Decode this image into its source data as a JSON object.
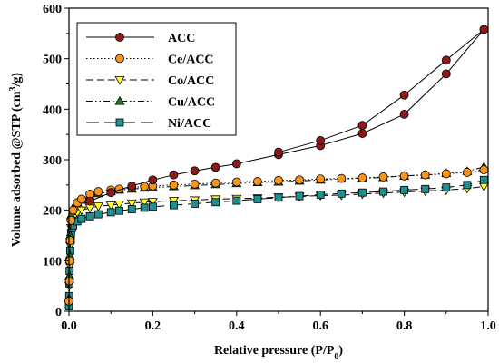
{
  "chart_data": {
    "type": "line",
    "xlabel": "Relative pressure (P/P",
    "xlabel_sub": "0",
    "xlabel_close": ")",
    "ylabel": "Volume adsorbed @STP (cm",
    "ylabel_sup": "3",
    "ylabel_rest": "/g)",
    "xlim": [
      0,
      1.0
    ],
    "ylim": [
      0,
      600
    ],
    "xticks": [
      "0.0",
      "0.2",
      "0.4",
      "0.6",
      "0.8",
      "1.0"
    ],
    "yticks": [
      "0",
      "100",
      "200",
      "300",
      "400",
      "500",
      "600"
    ],
    "grid": false,
    "legend_position": "top-left",
    "series": [
      {
        "name": "ACC",
        "color": "#8b1a1a",
        "marker": "circle",
        "dash": "solid",
        "adsorption": [
          [
            0.05,
            218
          ],
          [
            0.1,
            235
          ],
          [
            0.15,
            248
          ],
          [
            0.2,
            260
          ],
          [
            0.25,
            270
          ],
          [
            0.3,
            278
          ],
          [
            0.35,
            285
          ],
          [
            0.4,
            292
          ],
          [
            0.5,
            310
          ],
          [
            0.6,
            328
          ],
          [
            0.7,
            352
          ],
          [
            0.8,
            390
          ],
          [
            0.9,
            470
          ],
          [
            0.99,
            558
          ]
        ],
        "desorption": [
          [
            0.99,
            558
          ],
          [
            0.9,
            497
          ],
          [
            0.8,
            428
          ],
          [
            0.7,
            368
          ],
          [
            0.6,
            338
          ],
          [
            0.5,
            315
          ]
        ]
      },
      {
        "name": "Ce/ACC",
        "color": "#f7941d",
        "marker": "circle",
        "dash": "dotted",
        "adsorption": [
          [
            0.0,
            20
          ],
          [
            0.001,
            60
          ],
          [
            0.002,
            100
          ],
          [
            0.003,
            140
          ],
          [
            0.005,
            180
          ],
          [
            0.01,
            200
          ],
          [
            0.02,
            215
          ],
          [
            0.03,
            222
          ],
          [
            0.05,
            232
          ],
          [
            0.07,
            237
          ],
          [
            0.1,
            240
          ],
          [
            0.12,
            242
          ],
          [
            0.15,
            245
          ],
          [
            0.18,
            247
          ],
          [
            0.2,
            248
          ],
          [
            0.25,
            250
          ],
          [
            0.3,
            252
          ],
          [
            0.35,
            254
          ],
          [
            0.4,
            256
          ],
          [
            0.45,
            257
          ],
          [
            0.5,
            259
          ],
          [
            0.55,
            260
          ],
          [
            0.6,
            262
          ],
          [
            0.65,
            263
          ],
          [
            0.7,
            264
          ],
          [
            0.75,
            266
          ],
          [
            0.8,
            268
          ],
          [
            0.85,
            270
          ],
          [
            0.9,
            272
          ],
          [
            0.95,
            275
          ],
          [
            0.99,
            280
          ]
        ],
        "desorption": []
      },
      {
        "name": "Co/ACC",
        "color": "#ffff33",
        "marker": "triangle-down",
        "dash": "dashed",
        "adsorption": [
          [
            0.0,
            15
          ],
          [
            0.001,
            50
          ],
          [
            0.002,
            90
          ],
          [
            0.003,
            130
          ],
          [
            0.005,
            165
          ],
          [
            0.01,
            185
          ],
          [
            0.02,
            195
          ],
          [
            0.03,
            200
          ],
          [
            0.05,
            205
          ],
          [
            0.07,
            208
          ],
          [
            0.1,
            210
          ],
          [
            0.12,
            212
          ],
          [
            0.15,
            214
          ],
          [
            0.18,
            216
          ],
          [
            0.2,
            217
          ],
          [
            0.25,
            219
          ],
          [
            0.3,
            220
          ],
          [
            0.35,
            222
          ],
          [
            0.4,
            223
          ],
          [
            0.45,
            224
          ],
          [
            0.5,
            226
          ],
          [
            0.55,
            227
          ],
          [
            0.6,
            229
          ],
          [
            0.65,
            230
          ],
          [
            0.7,
            232
          ],
          [
            0.75,
            234
          ],
          [
            0.8,
            236
          ],
          [
            0.85,
            238
          ],
          [
            0.9,
            240
          ],
          [
            0.95,
            243
          ],
          [
            0.99,
            247
          ]
        ],
        "desorption": []
      },
      {
        "name": "Cu/ACC",
        "color": "#1f7a1f",
        "marker": "triangle-up",
        "dash": "dashdotdot",
        "adsorption": [
          [
            0.0,
            25
          ],
          [
            0.001,
            70
          ],
          [
            0.002,
            110
          ],
          [
            0.003,
            150
          ],
          [
            0.005,
            190
          ],
          [
            0.01,
            205
          ],
          [
            0.02,
            215
          ],
          [
            0.03,
            220
          ],
          [
            0.05,
            228
          ],
          [
            0.07,
            233
          ],
          [
            0.1,
            237
          ],
          [
            0.12,
            240
          ],
          [
            0.15,
            242
          ],
          [
            0.18,
            244
          ],
          [
            0.2,
            245
          ],
          [
            0.25,
            247
          ],
          [
            0.3,
            249
          ],
          [
            0.35,
            251
          ],
          [
            0.4,
            253
          ],
          [
            0.45,
            255
          ],
          [
            0.5,
            256
          ],
          [
            0.55,
            258
          ],
          [
            0.6,
            260
          ],
          [
            0.65,
            262
          ],
          [
            0.7,
            263
          ],
          [
            0.75,
            265
          ],
          [
            0.8,
            268
          ],
          [
            0.85,
            270
          ],
          [
            0.9,
            273
          ],
          [
            0.95,
            277
          ],
          [
            0.99,
            286
          ]
        ],
        "desorption": []
      },
      {
        "name": "Ni/ACC",
        "color": "#1f8f8f",
        "marker": "square",
        "dash": "longdash",
        "adsorption": [
          [
            0.0,
            10
          ],
          [
            0.0005,
            30
          ],
          [
            0.001,
            55
          ],
          [
            0.0015,
            80
          ],
          [
            0.002,
            100
          ],
          [
            0.003,
            120
          ],
          [
            0.004,
            140
          ],
          [
            0.005,
            155
          ],
          [
            0.007,
            165
          ],
          [
            0.01,
            170
          ],
          [
            0.02,
            178
          ],
          [
            0.03,
            183
          ],
          [
            0.05,
            188
          ],
          [
            0.07,
            192
          ],
          [
            0.1,
            196
          ],
          [
            0.12,
            199
          ],
          [
            0.15,
            202
          ],
          [
            0.18,
            205
          ],
          [
            0.2,
            207
          ],
          [
            0.25,
            210
          ],
          [
            0.3,
            213
          ],
          [
            0.35,
            216
          ],
          [
            0.4,
            219
          ],
          [
            0.45,
            222
          ],
          [
            0.5,
            225
          ],
          [
            0.55,
            228
          ],
          [
            0.6,
            231
          ],
          [
            0.65,
            233
          ],
          [
            0.7,
            235
          ],
          [
            0.75,
            237
          ],
          [
            0.8,
            240
          ],
          [
            0.85,
            242
          ],
          [
            0.9,
            245
          ],
          [
            0.95,
            250
          ],
          [
            0.99,
            260
          ]
        ],
        "desorption": []
      }
    ]
  }
}
